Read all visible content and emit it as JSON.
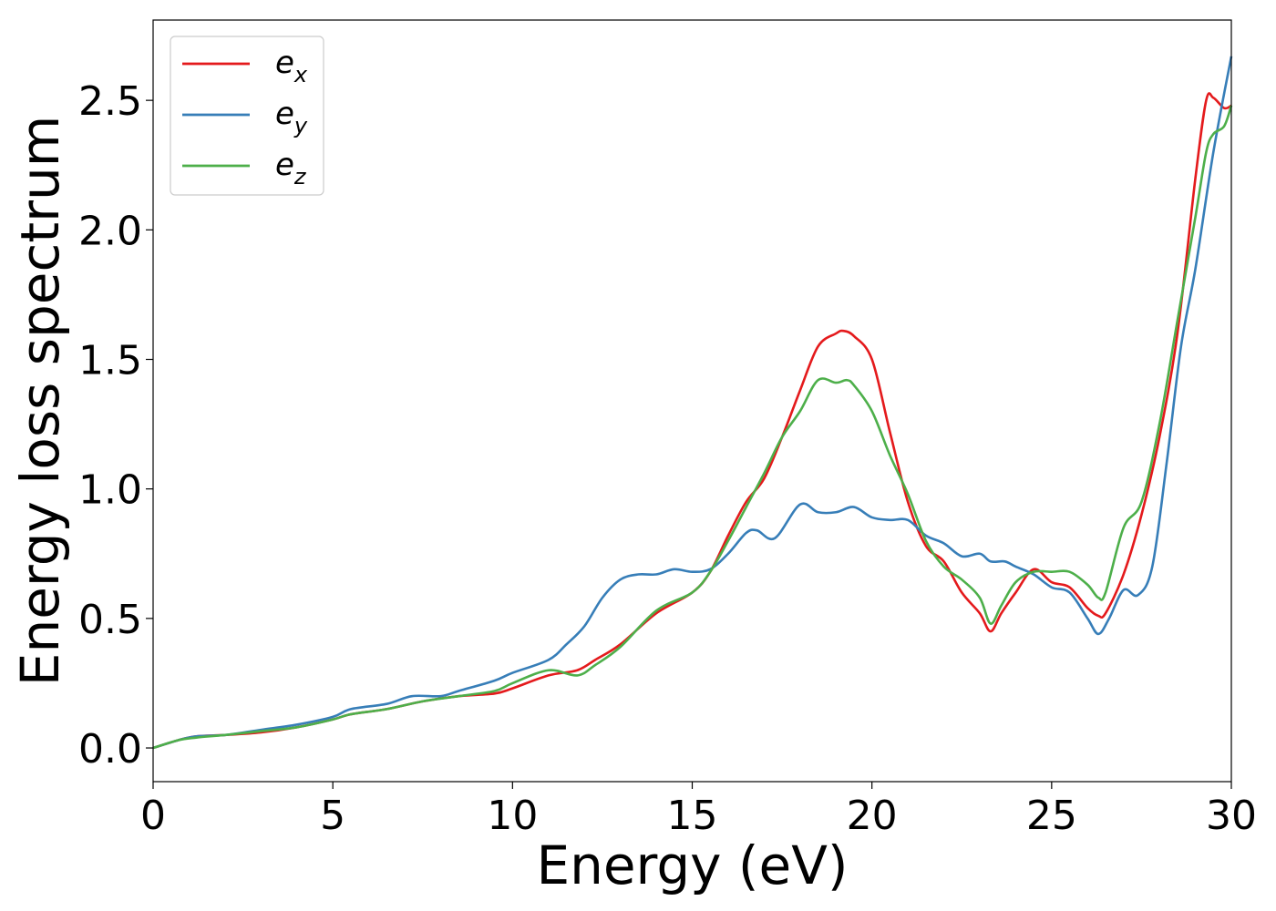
{
  "chart_data": {
    "type": "line",
    "title": "",
    "xlabel": "Energy (eV)",
    "ylabel": "Energy loss spectrum",
    "xlim": [
      0,
      30
    ],
    "ylim": [
      -0.13,
      2.81
    ],
    "xticks": [
      0,
      5,
      10,
      15,
      20,
      25,
      30
    ],
    "yticks": [
      0.0,
      0.5,
      1.0,
      1.5,
      2.0,
      2.5
    ],
    "xtick_labels": [
      "0",
      "5",
      "10",
      "15",
      "20",
      "25",
      "30"
    ],
    "ytick_labels": [
      "0.0",
      "0.5",
      "1.0",
      "1.5",
      "2.0",
      "2.5"
    ],
    "grid": false,
    "legend_position": "top-left",
    "series": [
      {
        "name": "e",
        "subscript": "x",
        "color": "#e41a1c",
        "x": [
          0,
          0.7,
          1.2,
          2,
          3,
          4,
          5,
          5.5,
          6.5,
          7.5,
          8.5,
          9.5,
          10,
          11,
          11.8,
          12.3,
          13,
          14,
          15,
          15.5,
          16,
          16.5,
          17,
          17.5,
          18,
          18.5,
          19,
          19.2,
          19.5,
          20,
          20.5,
          21,
          21.5,
          22,
          22.5,
          23,
          23.3,
          23.6,
          24,
          24.5,
          25,
          25.5,
          26,
          26.3,
          26.5,
          27,
          27.5,
          28,
          28.5,
          29,
          29.3,
          29.5,
          29.8,
          30
        ],
        "y": [
          0.0,
          0.03,
          0.045,
          0.05,
          0.06,
          0.08,
          0.11,
          0.13,
          0.15,
          0.18,
          0.2,
          0.21,
          0.23,
          0.28,
          0.3,
          0.34,
          0.4,
          0.52,
          0.6,
          0.68,
          0.82,
          0.95,
          1.04,
          1.2,
          1.38,
          1.55,
          1.6,
          1.61,
          1.59,
          1.5,
          1.22,
          0.95,
          0.78,
          0.72,
          0.6,
          0.52,
          0.45,
          0.52,
          0.6,
          0.69,
          0.64,
          0.62,
          0.54,
          0.51,
          0.52,
          0.67,
          0.9,
          1.2,
          1.6,
          2.2,
          2.5,
          2.51,
          2.47,
          2.48
        ]
      },
      {
        "name": "e",
        "subscript": "y",
        "color": "#377eb8",
        "x": [
          0,
          0.7,
          1.2,
          2,
          3,
          4,
          5,
          5.5,
          6.5,
          7.2,
          8,
          8.5,
          9.5,
          10,
          11,
          11.5,
          12,
          12.5,
          13,
          13.5,
          14,
          14.5,
          15,
          15.5,
          16,
          16.5,
          16.8,
          17.3,
          18,
          18.5,
          19,
          19.5,
          20,
          20.5,
          21,
          21.5,
          22,
          22.5,
          23,
          23.3,
          23.7,
          24,
          24.5,
          25,
          25.5,
          26,
          26.3,
          26.6,
          27,
          27.4,
          27.8,
          28.2,
          28.6,
          29,
          29.5,
          30
        ],
        "y": [
          0.0,
          0.03,
          0.045,
          0.05,
          0.07,
          0.09,
          0.12,
          0.15,
          0.17,
          0.2,
          0.2,
          0.22,
          0.26,
          0.29,
          0.34,
          0.4,
          0.47,
          0.58,
          0.65,
          0.67,
          0.67,
          0.69,
          0.68,
          0.69,
          0.75,
          0.83,
          0.84,
          0.81,
          0.94,
          0.91,
          0.91,
          0.93,
          0.89,
          0.88,
          0.88,
          0.82,
          0.79,
          0.74,
          0.75,
          0.72,
          0.72,
          0.7,
          0.67,
          0.62,
          0.6,
          0.5,
          0.44,
          0.5,
          0.61,
          0.59,
          0.7,
          1.1,
          1.55,
          1.85,
          2.3,
          2.67
        ]
      },
      {
        "name": "e",
        "subscript": "z",
        "color": "#4daf4a",
        "x": [
          0,
          0.7,
          1.2,
          2,
          3,
          4,
          5,
          5.5,
          6.5,
          7.5,
          8.5,
          9.5,
          10,
          11,
          11.8,
          12.3,
          13,
          14,
          15,
          15.5,
          16,
          16.5,
          17,
          17.5,
          18,
          18.5,
          19,
          19.3,
          19.5,
          20,
          20.5,
          21,
          21.5,
          22,
          22.5,
          23,
          23.3,
          23.6,
          24,
          24.5,
          25,
          25.5,
          26,
          26.3,
          26.5,
          27,
          27.5,
          28,
          28.5,
          29,
          29.3,
          29.5,
          29.8,
          30
        ],
        "y": [
          0.0,
          0.03,
          0.04,
          0.05,
          0.065,
          0.08,
          0.11,
          0.13,
          0.15,
          0.18,
          0.2,
          0.22,
          0.25,
          0.3,
          0.28,
          0.32,
          0.39,
          0.53,
          0.6,
          0.68,
          0.8,
          0.93,
          1.06,
          1.2,
          1.3,
          1.42,
          1.41,
          1.42,
          1.4,
          1.3,
          1.13,
          0.98,
          0.8,
          0.7,
          0.65,
          0.58,
          0.48,
          0.55,
          0.64,
          0.68,
          0.68,
          0.68,
          0.63,
          0.58,
          0.6,
          0.85,
          0.95,
          1.25,
          1.65,
          2.05,
          2.3,
          2.37,
          2.4,
          2.48
        ]
      }
    ]
  }
}
